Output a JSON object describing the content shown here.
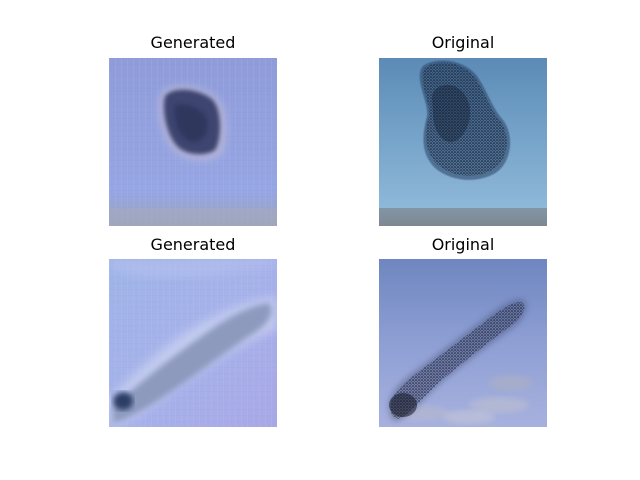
{
  "panels": [
    {
      "title": "Generated",
      "image": "blurry blue blob on lavender grid background"
    },
    {
      "title": "Original",
      "image": "dark starling murmuration blob against blue sky"
    },
    {
      "title": "Generated",
      "image": "blurry diagonal band on lavender grid background"
    },
    {
      "title": "Original",
      "image": "diagonal starling murmuration over clouds"
    }
  ]
}
